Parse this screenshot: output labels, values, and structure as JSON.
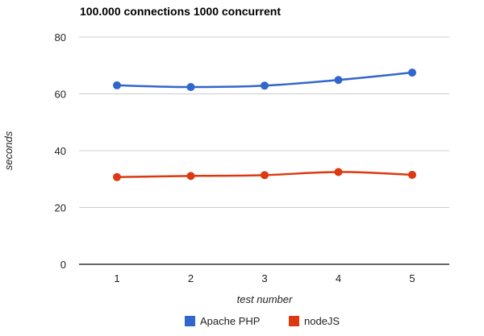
{
  "chart_data": {
    "type": "line",
    "title": "100.000 connections 1000 concurrent",
    "xlabel": "test number",
    "ylabel": "seconds",
    "x": [
      "1",
      "2",
      "3",
      "4",
      "5"
    ],
    "ylim": [
      0,
      80
    ],
    "yticks": [
      "0",
      "20",
      "40",
      "60",
      "80"
    ],
    "grid": true,
    "legend_position": "bottom",
    "series": [
      {
        "name": "Apache PHP",
        "color": "#3366cc",
        "values": [
          63.0,
          62.4,
          62.9,
          64.9,
          67.5
        ]
      },
      {
        "name": "nodeJS",
        "color": "#dc3912",
        "values": [
          30.7,
          31.1,
          31.4,
          32.5,
          31.5
        ]
      }
    ]
  }
}
